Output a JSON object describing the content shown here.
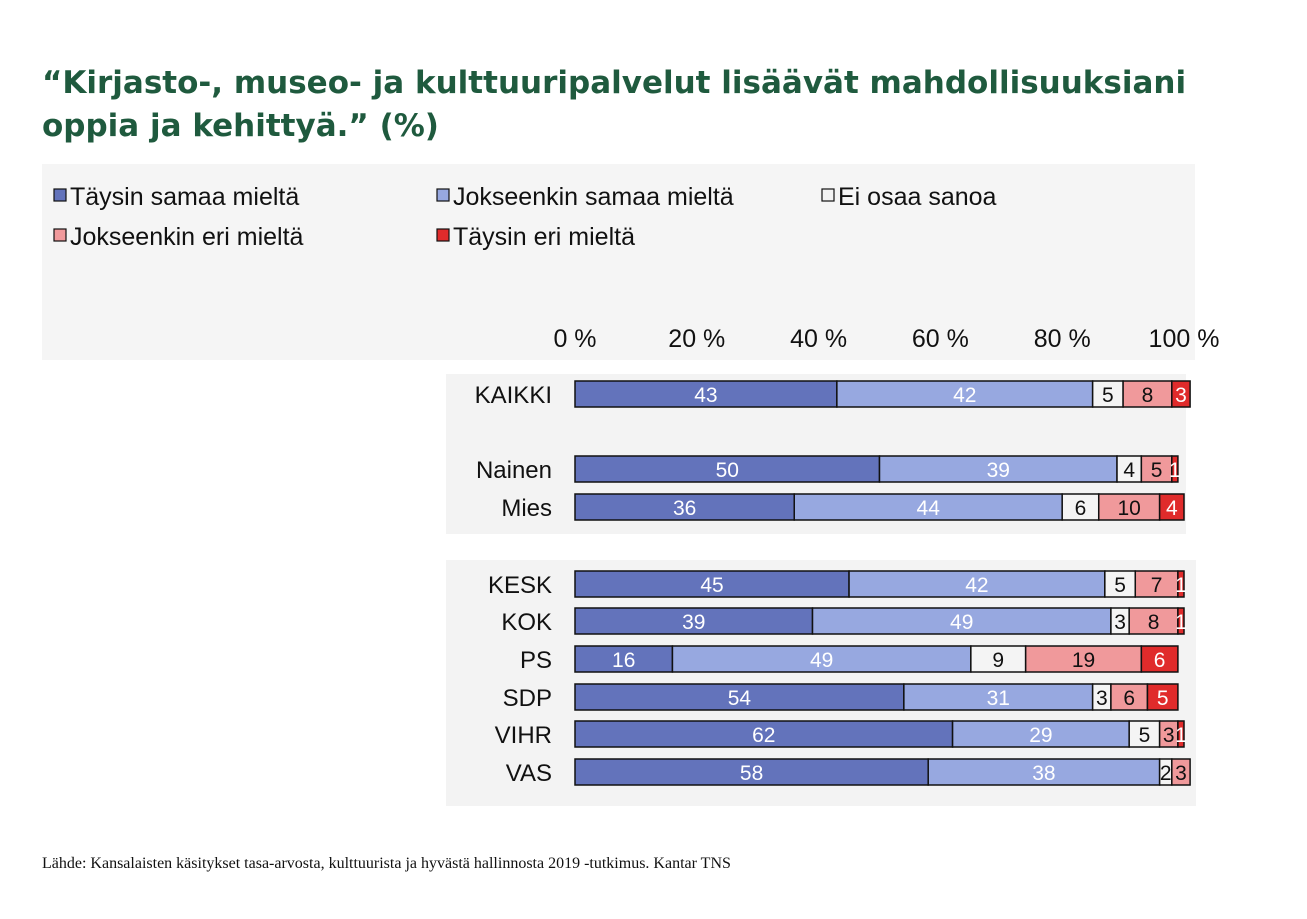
{
  "title_lines": [
    "“Kirjasto-, museo- ja kulttuuripalvelut lisäävät mahdollisuuksiani",
    "oppia ja kehittyä.” (%)"
  ],
  "source": "Lähde: Kansalaisten käsitykset tasa-arvosta, kulttuurista ja hyvästä hallinnosta 2019 -tutkimus. Kantar TNS",
  "chart_data": {
    "type": "bar",
    "orientation": "horizontal",
    "stacked": true,
    "xlim": [
      0,
      100
    ],
    "x_ticks": [
      "0 %",
      "20 %",
      "40 %",
      "60 %",
      "80 %",
      "100 %"
    ],
    "x_axis_position": "top",
    "legend_position": "top-left",
    "categories": [
      "KAIKKI",
      "Nainen",
      "Mies",
      "KESK",
      "KOK",
      "PS",
      "SDP",
      "VIHR",
      "VAS"
    ],
    "series": [
      {
        "name": "Täysin samaa mieltä",
        "color": "#6373bb",
        "values": [
          43,
          50,
          36,
          45,
          39,
          16,
          54,
          62,
          58
        ]
      },
      {
        "name": "Jokseenkin samaa mieltä",
        "color": "#97a8e0",
        "values": [
          42,
          39,
          44,
          42,
          49,
          49,
          31,
          29,
          38
        ]
      },
      {
        "name": "Ei osaa sanoa",
        "color": "#f4f4f4",
        "values": [
          5,
          4,
          6,
          5,
          3,
          9,
          3,
          5,
          2
        ]
      },
      {
        "name": "Jokseenkin eri mieltä",
        "color": "#f0999b",
        "values": [
          8,
          5,
          10,
          7,
          8,
          19,
          6,
          3,
          3
        ]
      },
      {
        "name": "Täysin eri mieltä",
        "color": "#e02b2b",
        "values": [
          3,
          1,
          4,
          1,
          1,
          6,
          5,
          1,
          0
        ]
      }
    ]
  }
}
